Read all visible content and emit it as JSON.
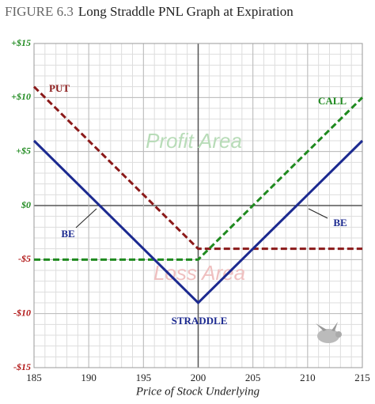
{
  "chart_data": {
    "type": "line",
    "title_label": "FIGURE 6.3",
    "title": "Long Straddle PNL Graph at Expiration",
    "x_label": "Price of Stock Underlying",
    "x": [
      185,
      200,
      215
    ],
    "series": [
      {
        "name": "PUT",
        "color": "#8b1a1a",
        "style": "dashed",
        "values": [
          11,
          -4,
          -4
        ]
      },
      {
        "name": "CALL",
        "color": "#1f8a1f",
        "style": "dashed",
        "values": [
          -5,
          -5,
          10
        ]
      },
      {
        "name": "STRADDLE",
        "color": "#1c2a90",
        "style": "solid",
        "values": [
          6,
          -9,
          6
        ]
      }
    ],
    "annotations": [
      "BE",
      "BE",
      "Profit Area",
      "Loss Area"
    ],
    "xlim": [
      185,
      215
    ],
    "xticks": [
      185,
      190,
      195,
      200,
      205,
      210,
      215
    ],
    "ylim": [
      -15,
      15
    ],
    "yticks": [
      {
        "value": -15,
        "label": "-$15"
      },
      {
        "value": -10,
        "label": "-$10"
      },
      {
        "value": -5,
        "label": "-$5"
      },
      {
        "value": 0,
        "label": "$0"
      },
      {
        "value": 5,
        "label": "+$5"
      },
      {
        "value": 10,
        "label": "+$10"
      },
      {
        "value": 15,
        "label": "+$15"
      }
    ],
    "grid": true
  }
}
